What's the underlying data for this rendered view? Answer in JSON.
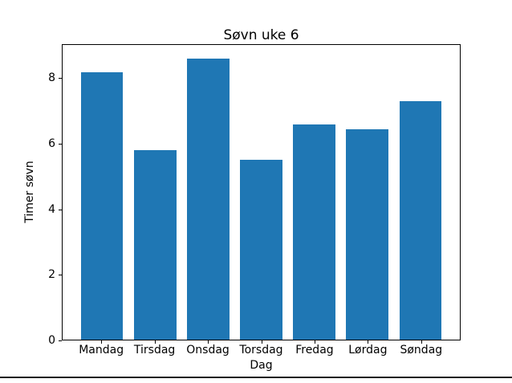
{
  "window": {
    "background": "#ffffff",
    "bottom_border_color": "#1a1a1a"
  },
  "chart_data": {
    "type": "bar",
    "title": "Søvn uke 6",
    "xlabel": "Dag",
    "ylabel": "Timer søvn",
    "categories": [
      "Mandag",
      "Tirsdag",
      "Onsdag",
      "Torsdag",
      "Fredag",
      "Lørdag",
      "Søndag"
    ],
    "values": [
      8.2,
      5.8,
      8.6,
      5.5,
      6.6,
      6.45,
      7.3
    ],
    "bar_color": "#1f77b4",
    "axis_color": "#000000",
    "text_color": "#000000",
    "ylim": [
      0,
      9.03
    ],
    "yticks": [
      0,
      2,
      4,
      6,
      8
    ],
    "xlim": [
      -0.74,
      6.74
    ],
    "bar_width_fraction": 0.8,
    "grid": false,
    "legend_position": "none"
  }
}
